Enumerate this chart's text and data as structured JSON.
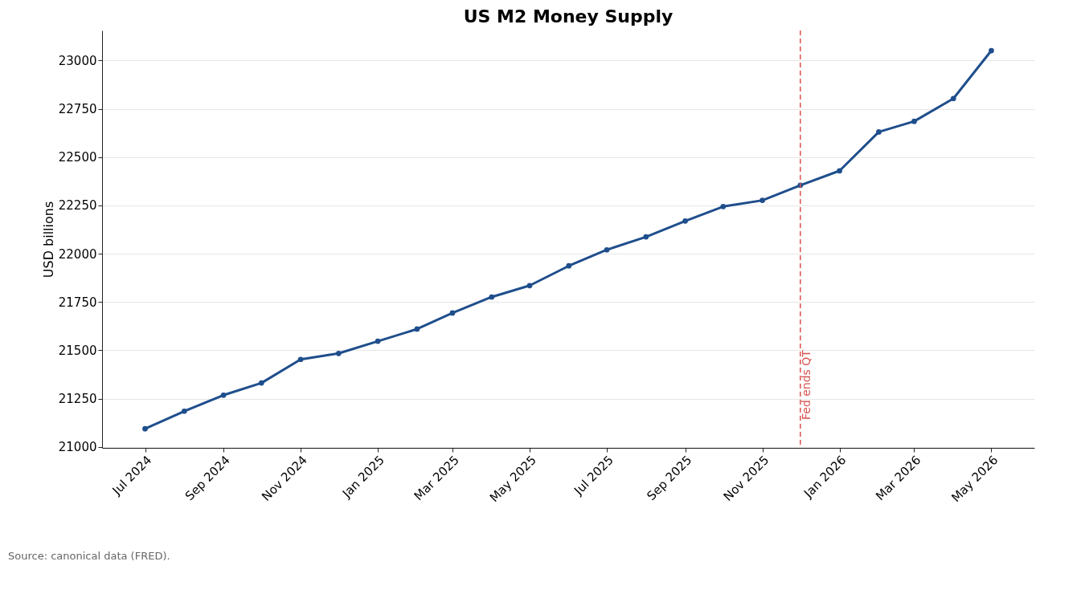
{
  "chart_data": {
    "type": "line",
    "title": "US M2 Money Supply",
    "ylabel": "USD billions",
    "x": [
      "2024-07-01",
      "2024-08-01",
      "2024-09-01",
      "2024-10-01",
      "2024-11-01",
      "2024-12-01",
      "2025-01-01",
      "2025-02-01",
      "2025-03-01",
      "2025-04-01",
      "2025-05-01",
      "2025-06-01",
      "2025-07-01",
      "2025-08-01",
      "2025-09-01",
      "2025-10-01",
      "2025-11-01",
      "2025-12-01",
      "2026-01-01",
      "2026-02-01",
      "2026-03-01",
      "2026-04-01",
      "2026-05-01"
    ],
    "series": [
      {
        "color": "#1f4e8c",
        "values": [
          21094,
          21185,
          21268,
          21331,
          21453,
          21484,
          21547,
          21610,
          21693,
          21776,
          21835,
          21937,
          22020,
          22087,
          22169,
          22244,
          22276,
          22354,
          22429,
          22630,
          22685,
          22803,
          23051
        ]
      }
    ],
    "xlim": [
      "2024-05-28",
      "2026-06-04"
    ],
    "xticks": [
      {
        "value": "2024-07-01",
        "label": "Jul 2024"
      },
      {
        "value": "2024-09-01",
        "label": "Sep 2024"
      },
      {
        "value": "2024-11-01",
        "label": "Nov 2024"
      },
      {
        "value": "2025-01-01",
        "label": "Jan 2025"
      },
      {
        "value": "2025-03-01",
        "label": "Mar 2025"
      },
      {
        "value": "2025-05-01",
        "label": "May 2025"
      },
      {
        "value": "2025-07-01",
        "label": "Jul 2025"
      },
      {
        "value": "2025-09-01",
        "label": "Sep 2025"
      },
      {
        "value": "2025-11-01",
        "label": "Nov 2025"
      },
      {
        "value": "2026-01-01",
        "label": "Jan 2026"
      },
      {
        "value": "2026-03-01",
        "label": "Mar 2026"
      },
      {
        "value": "2026-05-01",
        "label": "May 2026"
      }
    ],
    "ylim": [
      20995,
      23155
    ],
    "yticks": [
      21000,
      21250,
      21500,
      21750,
      22000,
      22250,
      22500,
      22750,
      23000
    ],
    "ref_lines": [
      {
        "axis": "x",
        "value": "2025-12-01",
        "label": "Fed ends QT",
        "color": "#d9534f",
        "line_style": "dashed"
      }
    ],
    "grid": "y",
    "marker": "circle",
    "line_style": "solid",
    "annotations": [
      "Source: canonical data (FRED)."
    ]
  }
}
